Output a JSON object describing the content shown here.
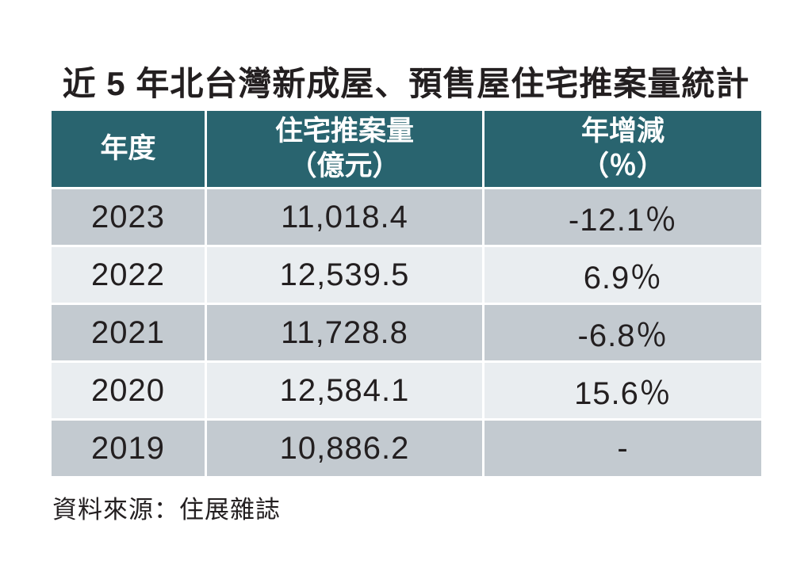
{
  "title": "近 5 年北台灣新成屋、預售屋住宅推案量統計",
  "source": "資料來源：住展雜誌",
  "table": {
    "header": {
      "year": "年度",
      "volume_label": "住宅推案量",
      "volume_unit": "（億元）",
      "change_label": "年增減",
      "change_unit": "（％）"
    },
    "rows": [
      {
        "year": "2023",
        "volume": "11,018.4",
        "change": "-12.1％"
      },
      {
        "year": "2022",
        "volume": "12,539.5",
        "change": "6.9％"
      },
      {
        "year": "2021",
        "volume": "11,728.8",
        "change": "-6.8％"
      },
      {
        "year": "2020",
        "volume": "12,584.1",
        "change": "15.6％"
      },
      {
        "year": "2019",
        "volume": "10,886.2",
        "change": "-"
      }
    ]
  },
  "colors": {
    "header_bg": "#29646f",
    "header_text": "#ffffff",
    "row_dark": "#c3cad0",
    "row_light": "#e9edf0",
    "text": "#231f20",
    "background": "#ffffff"
  },
  "chart_data": {
    "type": "table",
    "title": "近 5 年北台灣新成屋、預售屋住宅推案量統計",
    "columns": [
      "年度",
      "住宅推案量（億元）",
      "年增減（％）"
    ],
    "rows": [
      [
        2023,
        11018.4,
        -12.1
      ],
      [
        2022,
        12539.5,
        6.9
      ],
      [
        2021,
        11728.8,
        -6.8
      ],
      [
        2020,
        12584.1,
        15.6
      ],
      [
        2019,
        10886.2,
        null
      ]
    ],
    "source": "住展雜誌"
  }
}
